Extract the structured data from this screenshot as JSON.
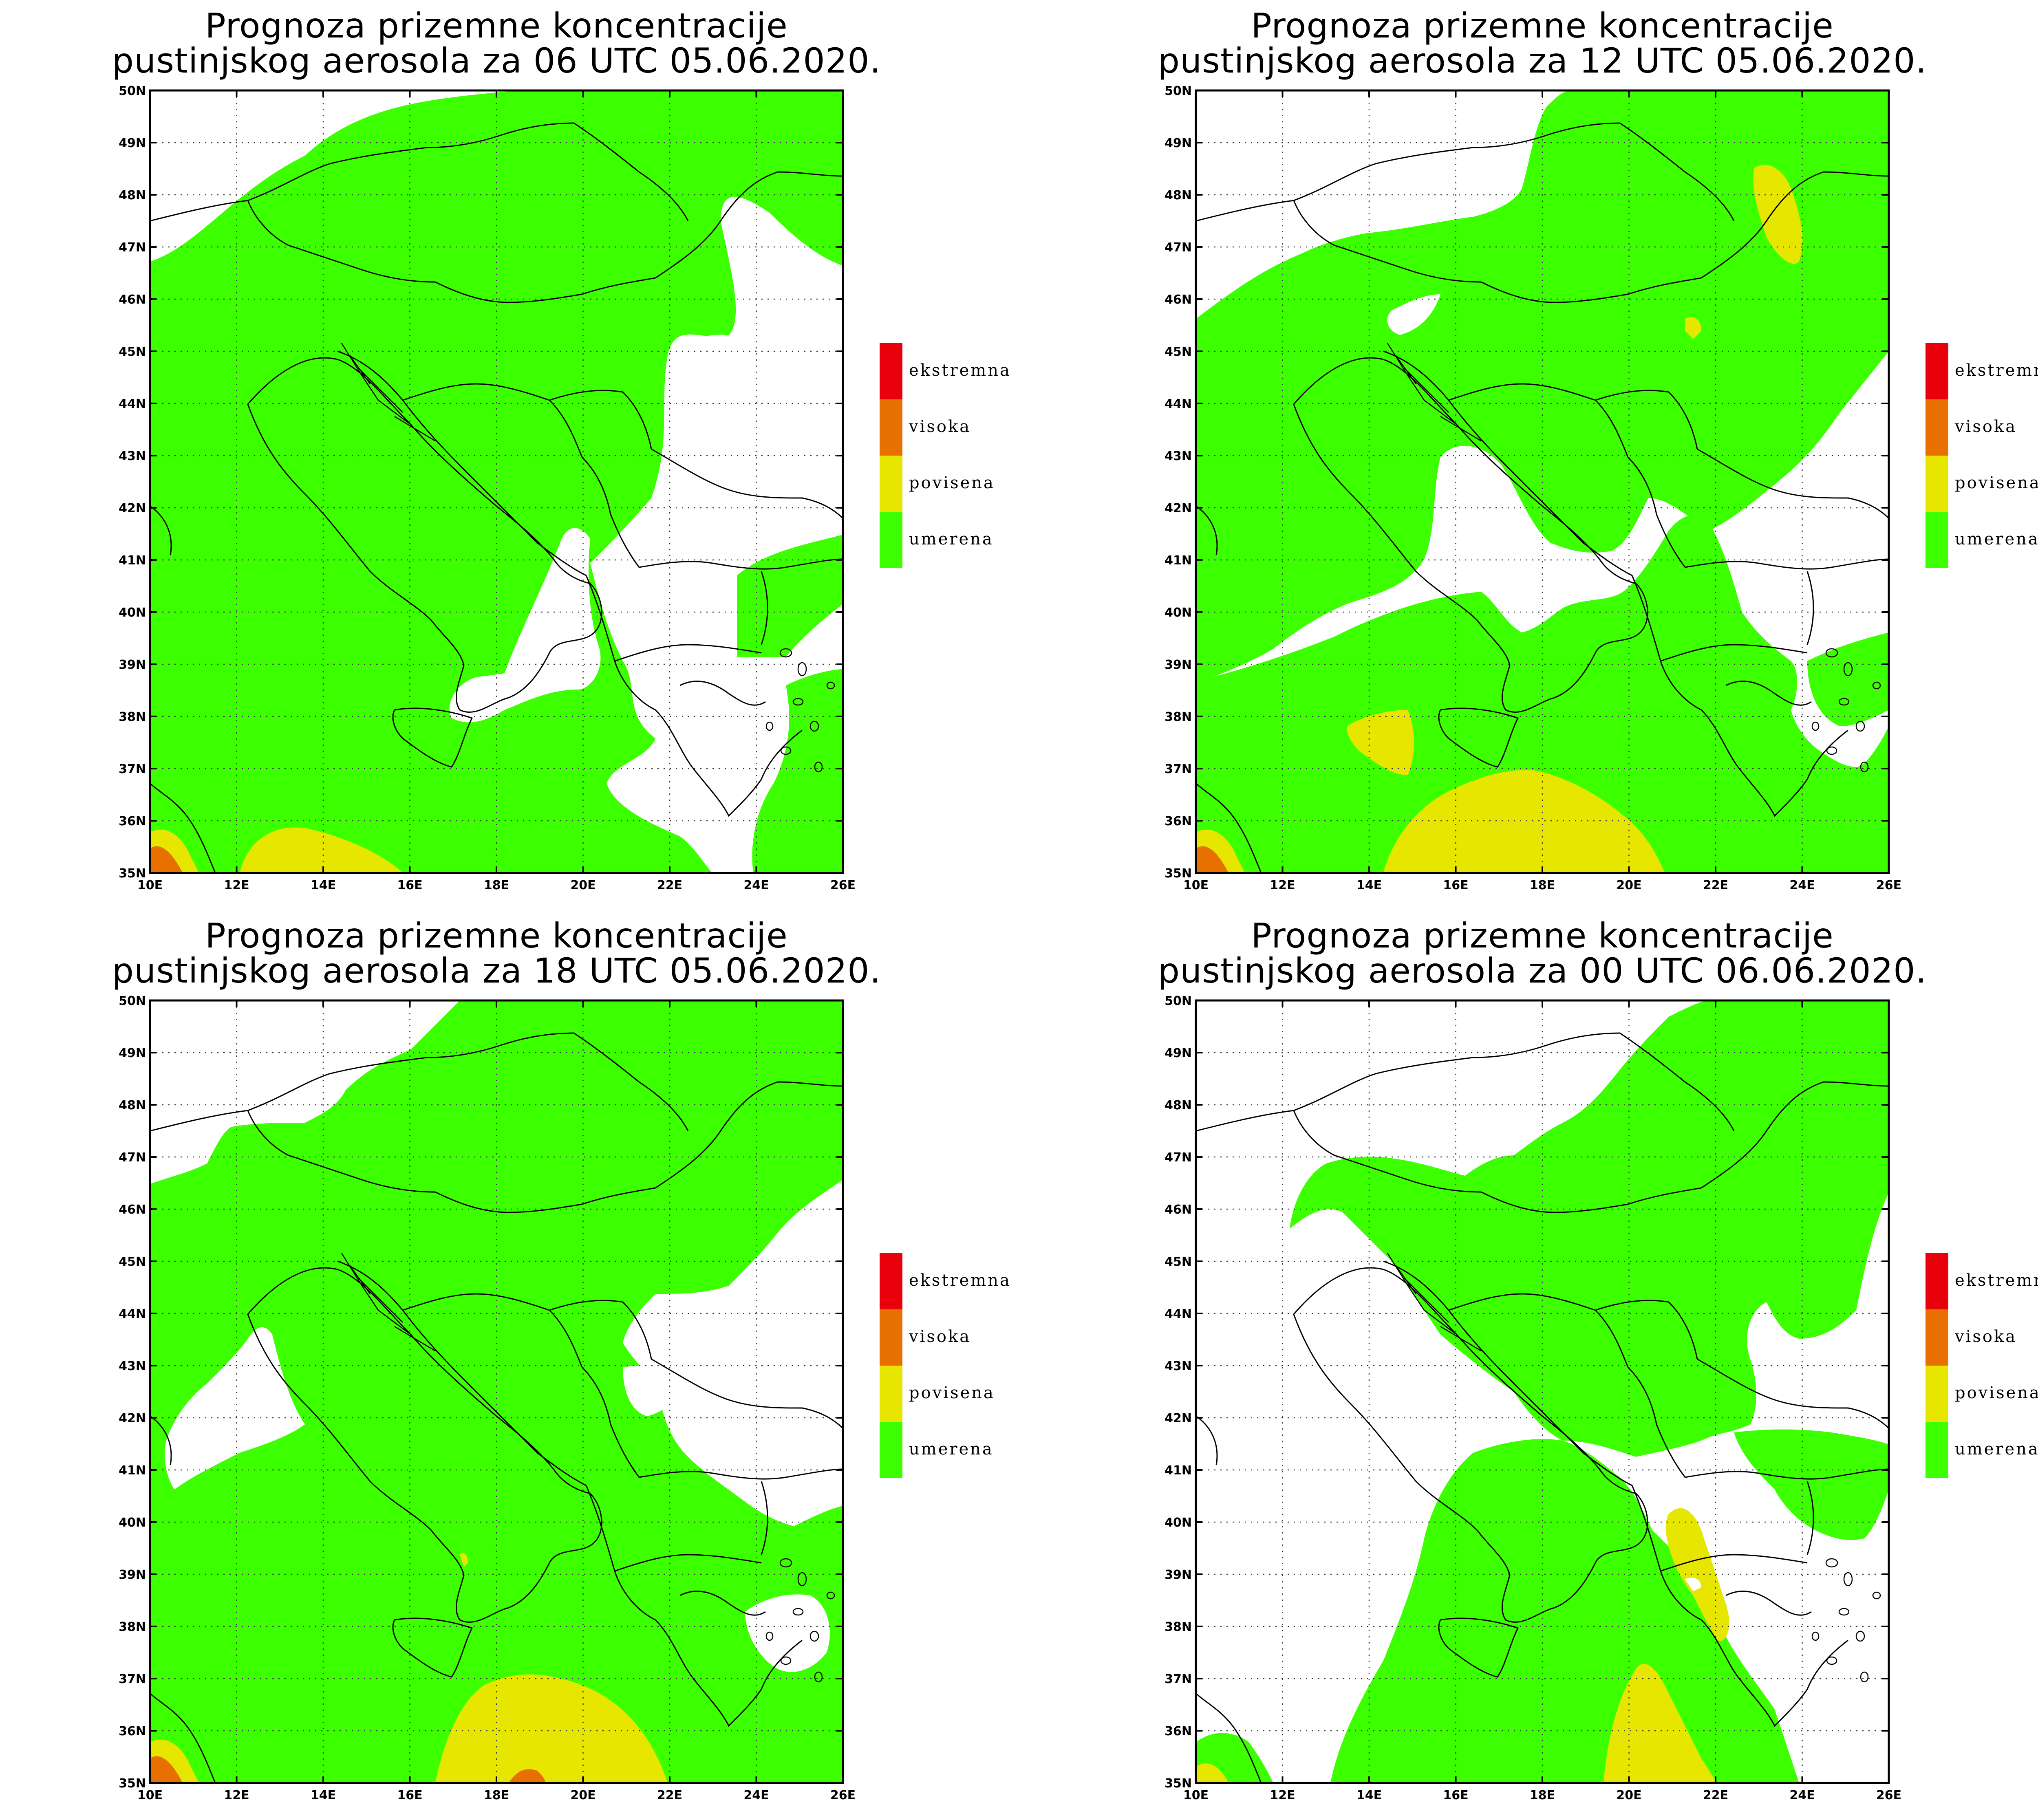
{
  "figure": {
    "panels": [
      {
        "id": "p06",
        "title_line1": "Prognoza prizemne koncentracije",
        "title_line2": "pustinjskog aerosola za 06 UTC 05.06.2020."
      },
      {
        "id": "p12",
        "title_line1": "Prognoza prizemne koncentracije",
        "title_line2": "pustinjskog aerosola za 12 UTC 05.06.2020."
      },
      {
        "id": "p18",
        "title_line1": "Prognoza prizemne koncentracije",
        "title_line2": "pustinjskog aerosola za 18 UTC 05.06.2020."
      },
      {
        "id": "p00",
        "title_line1": "Prognoza prizemne koncentracije",
        "title_line2": "pustinjskog aerosola za 00 UTC 06.06.2020."
      }
    ],
    "lat_labels": [
      "50N",
      "49N",
      "48N",
      "47N",
      "46N",
      "45N",
      "44N",
      "43N",
      "42N",
      "41N",
      "40N",
      "39N",
      "38N",
      "37N",
      "36N",
      "35N"
    ],
    "lon_labels": [
      "10E",
      "12E",
      "14E",
      "16E",
      "18E",
      "20E",
      "22E",
      "24E",
      "26E"
    ],
    "legend": [
      {
        "label": "ekstremna",
        "color": "#e8000b"
      },
      {
        "label": "visoka",
        "color": "#e87000"
      },
      {
        "label": "povisena",
        "color": "#e6e600"
      },
      {
        "label": "umerena",
        "color": "#3cff00"
      }
    ],
    "colors": {
      "umerena": "#3cff00",
      "povisena": "#e6e600",
      "visoka": "#e87000",
      "ekstremna": "#e8000b"
    }
  }
}
